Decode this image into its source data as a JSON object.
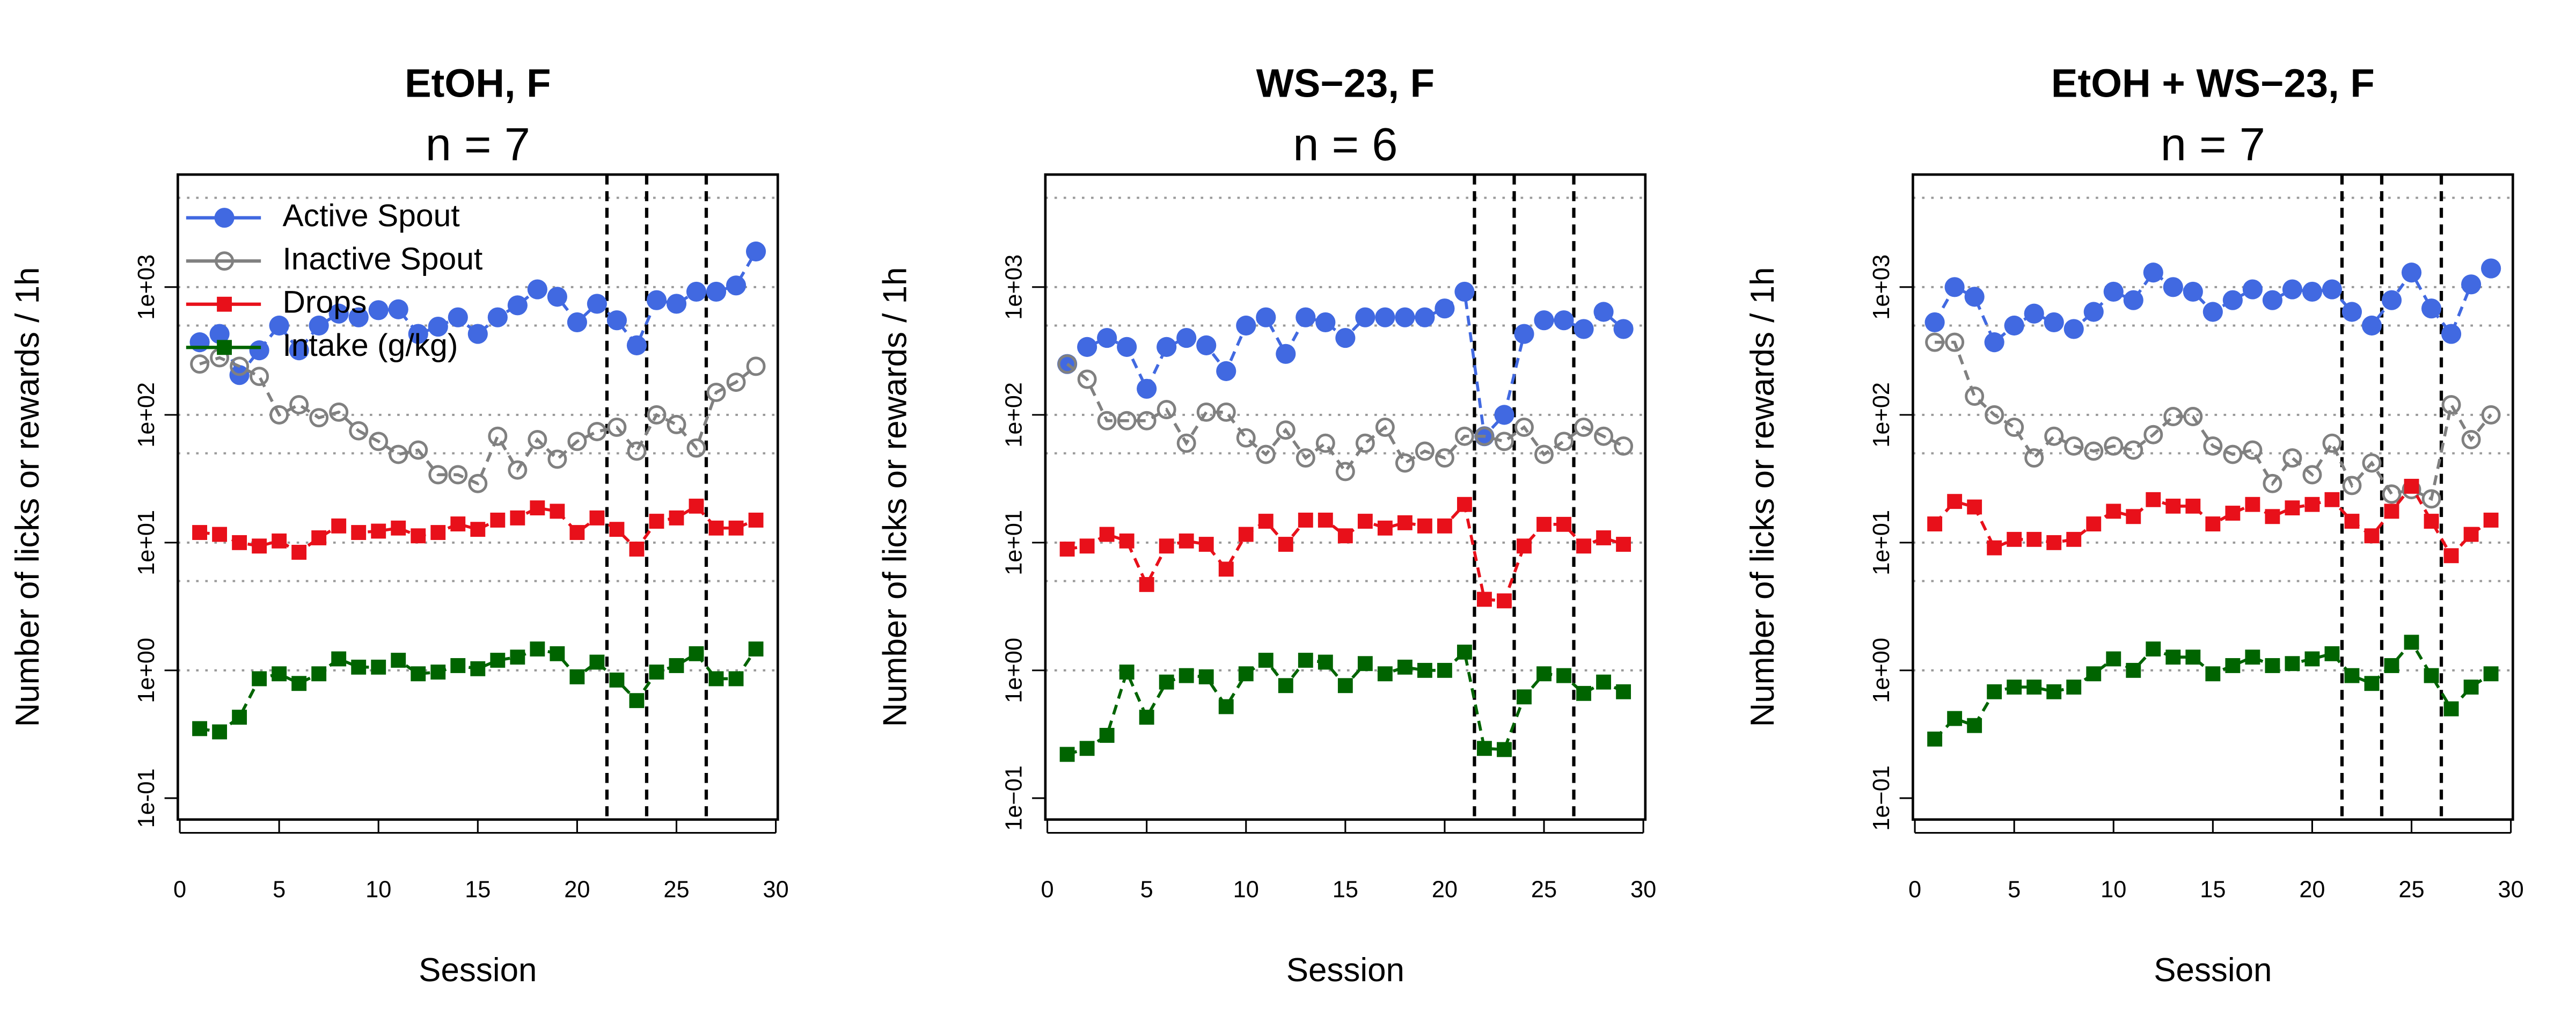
{
  "chart_data": [
    {
      "type": "line",
      "title": "EtOH, F",
      "subtitle": "n = 7",
      "xlabel": "Session",
      "ylabel": "Number of licks or rewards / 1h",
      "x": [
        1,
        2,
        3,
        4,
        5,
        6,
        7,
        8,
        9,
        10,
        11,
        12,
        13,
        14,
        15,
        16,
        17,
        18,
        19,
        20,
        21,
        22,
        23,
        24,
        25,
        26,
        27,
        28,
        29
      ],
      "series": [
        {
          "name": "Active Spout",
          "color": "#4169e1",
          "marker": "circle",
          "values": [
            370,
            430,
            205,
            320,
            500,
            320,
            500,
            620,
            580,
            660,
            670,
            430,
            490,
            580,
            430,
            580,
            720,
            960,
            840,
            530,
            740,
            550,
            350,
            790,
            740,
            920,
            920,
            1030,
            1900
          ]
        },
        {
          "name": "Inactive Spout",
          "color": "#808080",
          "marker": "circle-open",
          "values": [
            250,
            280,
            240,
            200,
            100,
            120,
            95,
            105,
            75,
            62,
            49,
            53,
            34,
            34,
            29,
            68,
            37,
            64,
            45,
            62,
            74,
            80,
            52,
            100,
            84,
            55,
            150,
            180,
            240
          ]
        },
        {
          "name": "Drops",
          "color": "#e8101a",
          "marker": "square",
          "values": [
            12,
            11.6,
            10,
            9.4,
            10.3,
            8.4,
            10.9,
            13.5,
            12,
            12.3,
            13,
            11.3,
            12,
            14,
            12.7,
            15,
            15.6,
            18.7,
            17.6,
            12,
            15.6,
            12.7,
            8.9,
            14.7,
            15.6,
            19.3,
            13,
            13,
            15
          ]
        },
        {
          "name": "Intake (g/kg)",
          "color": "#006400",
          "marker": "square",
          "values": [
            0.35,
            0.33,
            0.43,
            0.86,
            0.94,
            0.79,
            0.94,
            1.23,
            1.06,
            1.06,
            1.2,
            0.94,
            0.97,
            1.09,
            1.03,
            1.2,
            1.27,
            1.47,
            1.35,
            0.89,
            1.16,
            0.84,
            0.58,
            0.97,
            1.09,
            1.35,
            0.86,
            0.86,
            1.47
          ]
        }
      ],
      "xlim": [
        -0.1,
        30.1
      ],
      "ylim": [
        0.068,
        7600
      ],
      "log_y": true,
      "xticks": [
        0,
        5,
        10,
        15,
        20,
        25,
        30
      ],
      "yticks": [
        {
          "value": 0.1,
          "label": "1e-01"
        },
        {
          "value": 1,
          "label": "1e+00"
        },
        {
          "value": 10,
          "label": "1e+01"
        },
        {
          "value": 100,
          "label": "1e+02"
        },
        {
          "value": 1000,
          "label": "1e+03"
        }
      ],
      "grid_y": [
        5000,
        1000,
        500,
        100,
        50,
        10,
        5,
        1
      ],
      "vlines": [
        21.5,
        23.5,
        26.5
      ],
      "legend": "topleft"
    },
    {
      "type": "line",
      "title": "WS−23, F",
      "subtitle": "n = 6",
      "xlabel": "Session",
      "ylabel": "Number of licks or rewards / 1h",
      "x": [
        1,
        2,
        3,
        4,
        5,
        6,
        7,
        8,
        9,
        10,
        11,
        12,
        13,
        14,
        15,
        16,
        17,
        18,
        19,
        20,
        21,
        22,
        23,
        24,
        25,
        26,
        27,
        28,
        29
      ],
      "series": [
        {
          "name": "Active Spout",
          "color": "#4169e1",
          "marker": "circle",
          "values": [
            250,
            340,
            400,
            340,
            160,
            340,
            400,
            350,
            220,
            500,
            580,
            300,
            580,
            530,
            400,
            580,
            580,
            580,
            580,
            680,
            920,
            68,
            100,
            430,
            550,
            550,
            470,
            640,
            470
          ]
        },
        {
          "name": "Inactive Spout",
          "color": "#808080",
          "marker": "circle-open",
          "values": [
            250,
            190,
            90,
            90,
            90,
            110,
            60,
            105,
            105,
            66,
            49,
            76,
            46,
            60,
            36,
            60,
            80,
            42,
            52,
            46,
            68,
            68,
            62,
            80,
            49,
            62,
            80,
            68,
            57
          ]
        },
        {
          "name": "Drops",
          "color": "#e8101a",
          "marker": "square",
          "values": [
            8.9,
            9.4,
            11.6,
            10.3,
            4.7,
            9.4,
            10.3,
            9.7,
            6.2,
            11.6,
            14.7,
            9.7,
            15,
            15,
            11.3,
            14.7,
            13,
            14.3,
            13.5,
            13.5,
            19.9,
            3.6,
            3.5,
            9.4,
            13.9,
            13.9,
            9.4,
            10.9,
            9.7
          ]
        },
        {
          "name": "Intake (g/kg)",
          "color": "#006400",
          "marker": "square",
          "values": [
            0.22,
            0.245,
            0.31,
            0.97,
            0.43,
            0.81,
            0.91,
            0.89,
            0.52,
            0.94,
            1.2,
            0.76,
            1.2,
            1.16,
            0.76,
            1.13,
            0.94,
            1.06,
            1.0,
            1.0,
            1.39,
            0.245,
            0.24,
            0.62,
            0.94,
            0.91,
            0.66,
            0.81,
            0.68
          ]
        }
      ],
      "xlim": [
        -0.1,
        30.1
      ],
      "ylim": [
        0.068,
        7600
      ],
      "log_y": true,
      "xticks": [
        0,
        5,
        10,
        15,
        20,
        25,
        30
      ],
      "yticks": [
        {
          "value": 0.1,
          "label": "1e−01"
        },
        {
          "value": 1,
          "label": "1e+00"
        },
        {
          "value": 10,
          "label": "1e+01"
        },
        {
          "value": 100,
          "label": "1e+02"
        },
        {
          "value": 1000,
          "label": "1e+03"
        }
      ],
      "grid_y": [
        5000,
        1000,
        500,
        100,
        50,
        10,
        5,
        1
      ],
      "vlines": [
        21.5,
        23.5,
        26.5
      ]
    },
    {
      "type": "line",
      "title": "EtOH + WS−23, F",
      "subtitle": "n = 7",
      "xlabel": "Session",
      "ylabel": "Number of licks or rewards / 1h",
      "x": [
        1,
        2,
        3,
        4,
        5,
        6,
        7,
        8,
        9,
        10,
        11,
        12,
        13,
        14,
        15,
        16,
        17,
        18,
        19,
        20,
        21,
        22,
        23,
        24,
        25,
        26,
        27,
        28,
        29
      ],
      "series": [
        {
          "name": "Active Spout",
          "color": "#4169e1",
          "marker": "circle",
          "values": [
            530,
            1000,
            840,
            370,
            500,
            620,
            530,
            470,
            640,
            920,
            790,
            1300,
            1000,
            920,
            640,
            790,
            960,
            790,
            960,
            920,
            960,
            640,
            500,
            790,
            1300,
            680,
            430,
            1050,
            1400
          ]
        },
        {
          "name": "Inactive Spout",
          "color": "#808080",
          "marker": "circle-open",
          "values": [
            370,
            370,
            140,
            100,
            80,
            46,
            68,
            57,
            52,
            57,
            53,
            70,
            97,
            97,
            57,
            49,
            53,
            29,
            46,
            34,
            60,
            28,
            42,
            24,
            26,
            22,
            120,
            64,
            100
          ]
        },
        {
          "name": "Drops",
          "color": "#e8101a",
          "marker": "square",
          "values": [
            14,
            21,
            19,
            9.1,
            10.6,
            10.6,
            10,
            10.6,
            14,
            17.6,
            16,
            21.7,
            19.3,
            19.3,
            14,
            17,
            19.9,
            16,
            18.7,
            19.9,
            21.7,
            14.7,
            11.3,
            17.6,
            27.6,
            14.7,
            7.9,
            11.6,
            15
          ]
        },
        {
          "name": "Intake (g/kg)",
          "color": "#006400",
          "marker": "square",
          "values": [
            0.29,
            0.42,
            0.37,
            0.68,
            0.74,
            0.74,
            0.68,
            0.74,
            0.94,
            1.23,
            1.0,
            1.47,
            1.27,
            1.27,
            0.94,
            1.09,
            1.27,
            1.09,
            1.13,
            1.23,
            1.35,
            0.91,
            0.79,
            1.09,
            1.66,
            0.91,
            0.5,
            0.74,
            0.94
          ]
        }
      ],
      "xlim": [
        -0.1,
        30.1
      ],
      "ylim": [
        0.068,
        7600
      ],
      "log_y": true,
      "xticks": [
        0,
        5,
        10,
        15,
        20,
        25,
        30
      ],
      "yticks": [
        {
          "value": 0.1,
          "label": "1e−01"
        },
        {
          "value": 1,
          "label": "1e+00"
        },
        {
          "value": 10,
          "label": "1e+01"
        },
        {
          "value": 100,
          "label": "1e+02"
        },
        {
          "value": 1000,
          "label": "1e+03"
        }
      ],
      "grid_y": [
        5000,
        1000,
        500,
        100,
        50,
        10,
        5,
        1
      ],
      "vlines": [
        21.5,
        23.5,
        26.5
      ]
    }
  ]
}
